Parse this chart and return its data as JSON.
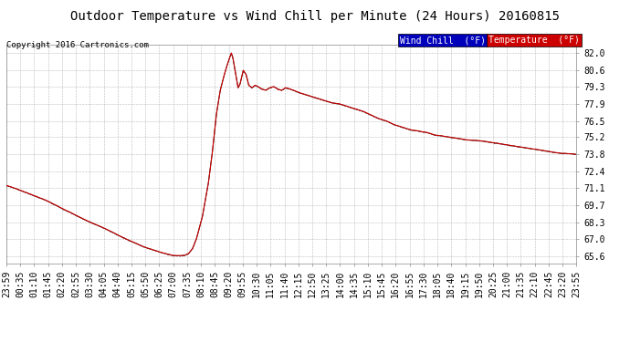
{
  "title": "Outdoor Temperature vs Wind Chill per Minute (24 Hours) 20160815",
  "copyright": "Copyright 2016 Cartronics.com",
  "legend_wind_label": "Wind Chill  (°F)",
  "legend_temp_label": "Temperature  (°F)",
  "legend_wind_bg": "#0000bb",
  "legend_temp_bg": "#cc0000",
  "y_ticks": [
    65.6,
    67.0,
    68.3,
    69.7,
    71.1,
    72.4,
    73.8,
    75.2,
    76.5,
    77.9,
    79.3,
    80.6,
    82.0
  ],
  "y_min": 65.0,
  "y_max": 82.7,
  "x_labels": [
    "23:59",
    "00:35",
    "01:10",
    "01:45",
    "02:20",
    "02:55",
    "03:30",
    "04:05",
    "04:40",
    "05:15",
    "05:50",
    "06:25",
    "07:00",
    "07:35",
    "08:10",
    "08:45",
    "09:20",
    "09:55",
    "10:30",
    "11:05",
    "11:40",
    "12:15",
    "12:50",
    "13:25",
    "14:00",
    "14:35",
    "15:10",
    "15:45",
    "16:20",
    "16:55",
    "17:30",
    "18:05",
    "18:40",
    "19:15",
    "19:50",
    "20:25",
    "21:00",
    "21:35",
    "22:10",
    "22:45",
    "23:20",
    "23:55"
  ],
  "temp_color": "#cc0000",
  "wind_chill_color": "#222222",
  "bg_color": "#ffffff",
  "grid_color": "#aaaaaa",
  "title_fontsize": 10,
  "axis_fontsize": 7,
  "control_points_temp": [
    [
      0,
      71.3
    ],
    [
      20,
      71.1
    ],
    [
      60,
      70.6
    ],
    [
      100,
      70.1
    ],
    [
      150,
      69.3
    ],
    [
      200,
      68.5
    ],
    [
      250,
      67.8
    ],
    [
      300,
      67.0
    ],
    [
      350,
      66.3
    ],
    [
      380,
      66.0
    ],
    [
      400,
      65.8
    ],
    [
      420,
      65.65
    ],
    [
      440,
      65.62
    ],
    [
      450,
      65.65
    ],
    [
      460,
      65.8
    ],
    [
      470,
      66.2
    ],
    [
      480,
      67.0
    ],
    [
      495,
      68.8
    ],
    [
      510,
      71.5
    ],
    [
      520,
      74.0
    ],
    [
      530,
      77.0
    ],
    [
      540,
      79.0
    ],
    [
      548,
      80.0
    ],
    [
      555,
      80.8
    ],
    [
      562,
      81.5
    ],
    [
      568,
      82.0
    ],
    [
      572,
      81.6
    ],
    [
      578,
      80.5
    ],
    [
      585,
      79.2
    ],
    [
      590,
      79.5
    ],
    [
      598,
      80.6
    ],
    [
      605,
      80.3
    ],
    [
      612,
      79.4
    ],
    [
      620,
      79.2
    ],
    [
      628,
      79.4
    ],
    [
      635,
      79.3
    ],
    [
      645,
      79.1
    ],
    [
      655,
      79.0
    ],
    [
      665,
      79.2
    ],
    [
      675,
      79.3
    ],
    [
      685,
      79.1
    ],
    [
      695,
      79.0
    ],
    [
      705,
      79.2
    ],
    [
      715,
      79.1
    ],
    [
      725,
      79.0
    ],
    [
      740,
      78.8
    ],
    [
      760,
      78.6
    ],
    [
      780,
      78.4
    ],
    [
      800,
      78.2
    ],
    [
      820,
      78.0
    ],
    [
      840,
      77.9
    ],
    [
      860,
      77.7
    ],
    [
      880,
      77.5
    ],
    [
      900,
      77.3
    ],
    [
      920,
      77.0
    ],
    [
      940,
      76.7
    ],
    [
      960,
      76.5
    ],
    [
      980,
      76.2
    ],
    [
      1000,
      76.0
    ],
    [
      1020,
      75.8
    ],
    [
      1040,
      75.7
    ],
    [
      1060,
      75.6
    ],
    [
      1080,
      75.4
    ],
    [
      1100,
      75.3
    ],
    [
      1120,
      75.2
    ],
    [
      1140,
      75.1
    ],
    [
      1160,
      75.0
    ],
    [
      1200,
      74.9
    ],
    [
      1240,
      74.7
    ],
    [
      1280,
      74.5
    ],
    [
      1320,
      74.3
    ],
    [
      1360,
      74.1
    ],
    [
      1400,
      73.9
    ],
    [
      1430,
      73.85
    ],
    [
      1439,
      73.8
    ]
  ]
}
